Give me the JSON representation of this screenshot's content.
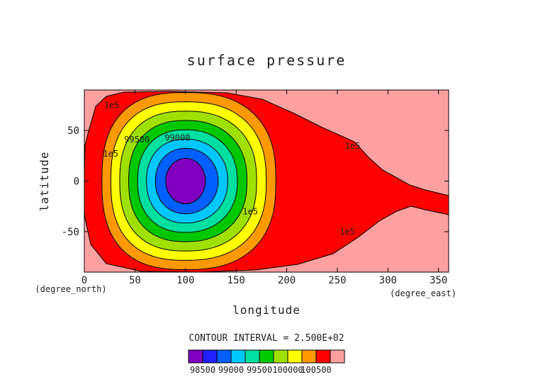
{
  "chart_data": {
    "type": "contour",
    "title": "surface pressure",
    "xlabel": "longitude",
    "ylabel": "latitude",
    "x_unit": "(degree_east)",
    "y_unit": "(degree_north)",
    "xlim": [
      0,
      360
    ],
    "ylim": [
      -90,
      90
    ],
    "x_ticks": [
      0,
      50,
      100,
      150,
      200,
      250,
      300,
      350
    ],
    "y_ticks": [
      -50,
      0,
      50
    ],
    "contour_interval_text": "CONTOUR INTERVAL = 2.500E+02",
    "field": {
      "low_center": [
        100,
        0
      ],
      "min_value": 98400,
      "background_value": 100500
    },
    "levels": [
      98500,
      98750,
      99000,
      99250,
      99500,
      99750,
      100000,
      100250
    ],
    "fill_colors": [
      "#7f00bf",
      "#2020ff",
      "#0060ff",
      "#00c8ff",
      "#00e0a0",
      "#00c800",
      "#a0e000",
      "#ffff00",
      "#ff9900",
      "#ff0000",
      "#ffa0a0"
    ],
    "contour_labels": [
      {
        "text": "1e5",
        "x": 27,
        "y": 72
      },
      {
        "text": "1e5",
        "x": 26,
        "y": 24
      },
      {
        "text": "99500",
        "x": 52,
        "y": 38
      },
      {
        "text": "99000",
        "x": 92,
        "y": 40
      },
      {
        "text": "1e5",
        "x": 164,
        "y": -33
      },
      {
        "text": "1e5",
        "x": 265,
        "y": 32
      },
      {
        "text": "1e5",
        "x": 260,
        "y": -53
      }
    ],
    "colorbar_labels": [
      "98500",
      "99000",
      "99500",
      "100000",
      "100500"
    ]
  }
}
